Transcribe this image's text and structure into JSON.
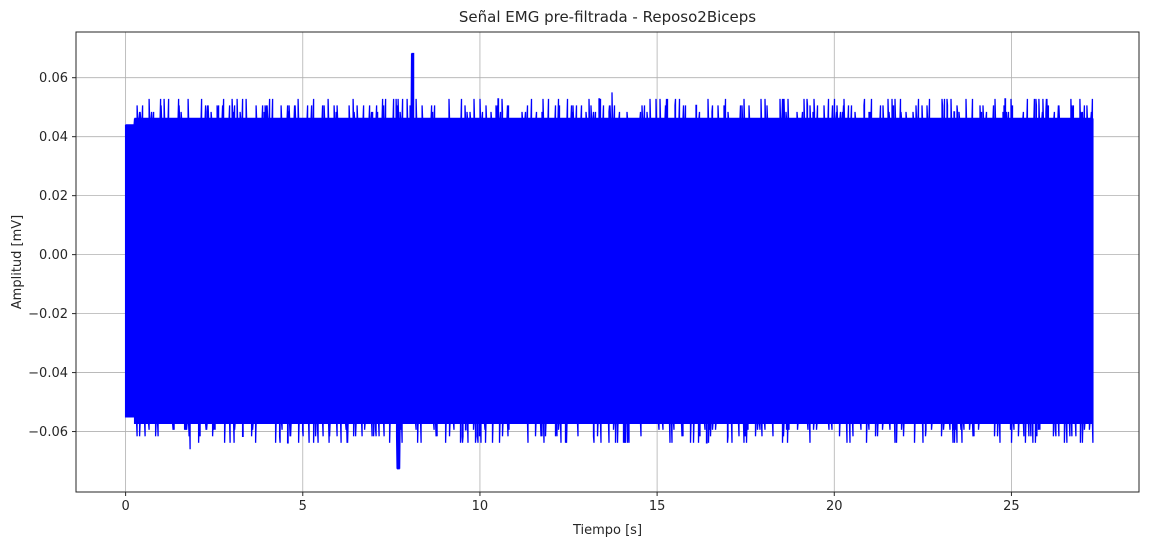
{
  "chart_data": {
    "type": "line",
    "title": "Señal EMG pre-filtrada - Reposo2Biceps",
    "xlabel": "Tiempo [s]",
    "ylabel": "Amplitud [mV]",
    "xlim": [
      -1.4,
      28.6
    ],
    "ylim": [
      -0.0805,
      0.0755
    ],
    "x_ticks": [
      0,
      5,
      10,
      15,
      20,
      25
    ],
    "x_tick_labels": [
      "0",
      "5",
      "10",
      "15",
      "20",
      "25"
    ],
    "y_ticks": [
      -0.06,
      -0.04,
      -0.02,
      0.0,
      0.02,
      0.04,
      0.06
    ],
    "y_tick_labels": [
      "−0.06",
      "−0.04",
      "−0.02",
      "0.00",
      "0.02",
      "0.04",
      "0.06"
    ],
    "grid": true,
    "series": [
      {
        "color": "#0000ff",
        "x_range": [
          0,
          27.3
        ],
        "typical_max": 0.046,
        "typical_min": -0.057,
        "peak_max": 0.068,
        "peak_max_time": 8.1,
        "peak_min": -0.073,
        "peak_min_time": 7.7
      }
    ]
  }
}
